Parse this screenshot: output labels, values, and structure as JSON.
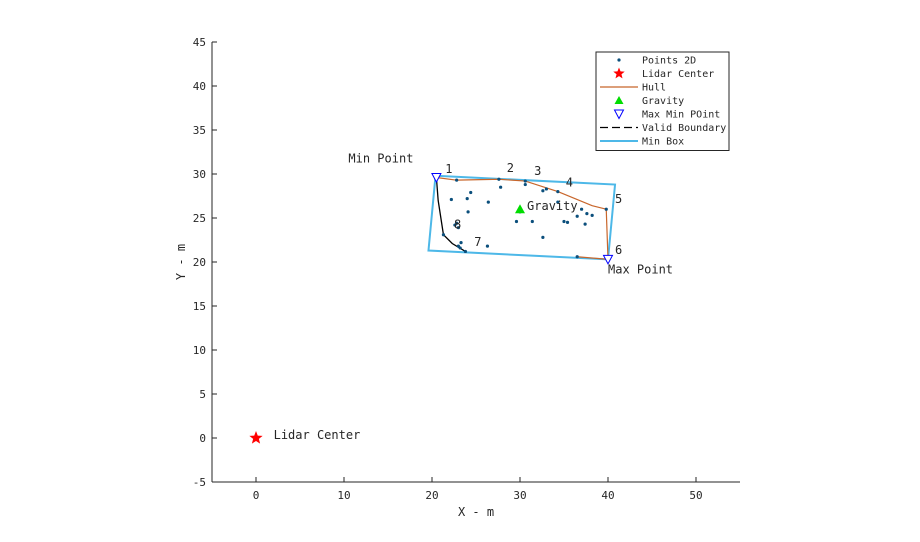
{
  "chart_data": {
    "type": "scatter",
    "xlabel": "X - m",
    "ylabel": "Y - m",
    "xlim": [
      -5,
      55
    ],
    "ylim": [
      -5,
      45
    ],
    "xticks": [
      0,
      10,
      20,
      30,
      40,
      50
    ],
    "yticks": [
      -5,
      0,
      5,
      10,
      15,
      20,
      25,
      30,
      35,
      40,
      45
    ],
    "xtick_labels": [
      "0",
      "10",
      "20",
      "30",
      "40",
      "50"
    ],
    "ytick_labels": [
      "-5",
      "0",
      "5",
      "10",
      "15",
      "20",
      "25",
      "30",
      "35",
      "40",
      "45"
    ],
    "grid": false,
    "legend_position": "top-right",
    "colors": {
      "points": "#0b4f7c",
      "lidar": "#ff0000",
      "hull": "#c8662b",
      "gravity": "#00dd00",
      "maxmin": "#0000ff",
      "valid_boundary": "#000000",
      "min_box": "#4db8e8",
      "axis": "#262626"
    },
    "series": [
      {
        "name": "Points 2D",
        "points": [
          [
            20.5,
            29.6
          ],
          [
            22.8,
            29.3
          ],
          [
            27.6,
            29.4
          ],
          [
            30.6,
            29.2
          ],
          [
            22.2,
            27.1
          ],
          [
            24.0,
            27.2
          ],
          [
            24.4,
            27.9
          ],
          [
            26.4,
            26.8
          ],
          [
            27.8,
            28.5
          ],
          [
            30.6,
            28.8
          ],
          [
            32.6,
            28.1
          ],
          [
            33.0,
            28.3
          ],
          [
            34.3,
            28.0
          ],
          [
            34.3,
            26.8
          ],
          [
            36.5,
            25.2
          ],
          [
            37.0,
            26.0
          ],
          [
            37.6,
            25.5
          ],
          [
            38.2,
            25.3
          ],
          [
            30.0,
            25.7
          ],
          [
            29.6,
            24.6
          ],
          [
            31.4,
            24.6
          ],
          [
            35.0,
            24.6
          ],
          [
            35.4,
            24.5
          ],
          [
            37.4,
            24.3
          ],
          [
            24.1,
            25.7
          ],
          [
            22.6,
            24.2
          ],
          [
            22.8,
            24.4
          ],
          [
            23.0,
            23.9
          ],
          [
            23.3,
            22.2
          ],
          [
            23.2,
            21.6
          ],
          [
            23.0,
            21.8
          ],
          [
            23.8,
            21.2
          ],
          [
            26.3,
            21.8
          ],
          [
            32.6,
            22.8
          ],
          [
            36.5,
            20.6
          ],
          [
            40.0,
            20.3
          ],
          [
            21.3,
            23.1
          ],
          [
            39.8,
            26.0
          ]
        ]
      },
      {
        "name": "Lidar Center",
        "points": [
          [
            0,
            0
          ]
        ]
      },
      {
        "name": "Hull",
        "points": [
          [
            20.5,
            29.6
          ],
          [
            22.8,
            29.3
          ],
          [
            27.6,
            29.4
          ],
          [
            30.6,
            29.2
          ],
          [
            34.3,
            28.0
          ],
          [
            38.2,
            26.4
          ],
          [
            39.8,
            26.0
          ],
          [
            40.0,
            20.3
          ],
          [
            36.5,
            20.6
          ]
        ]
      },
      {
        "name": "Gravity",
        "points": [
          [
            30.0,
            26.0
          ]
        ]
      },
      {
        "name": "Max Min POint",
        "points": [
          [
            20.5,
            29.6
          ],
          [
            40.0,
            20.3
          ]
        ]
      },
      {
        "name": "Valid Boundary",
        "points": [
          [
            20.5,
            29.6
          ],
          [
            20.7,
            27.0
          ],
          [
            21.3,
            23.1
          ],
          [
            22.3,
            22.1
          ],
          [
            23.8,
            21.2
          ]
        ]
      },
      {
        "name": "Min Box",
        "points": [
          [
            20.4,
            29.8
          ],
          [
            40.8,
            28.8
          ],
          [
            40.0,
            20.3
          ],
          [
            19.6,
            21.3
          ]
        ]
      }
    ],
    "annotations": [
      {
        "text": "Min Point",
        "x": 10.5,
        "y": 31.3
      },
      {
        "text": "Max Point",
        "x": 40.0,
        "y": 18.7
      },
      {
        "text": "Lidar Center",
        "x": 2.0,
        "y": -0.1
      },
      {
        "text": "Gravity",
        "x": 30.8,
        "y": 25.9
      },
      {
        "text": "1",
        "x": 21.5,
        "y": 30.1
      },
      {
        "text": "2",
        "x": 28.5,
        "y": 30.2
      },
      {
        "text": "3",
        "x": 31.6,
        "y": 29.9
      },
      {
        "text": "4",
        "x": 35.2,
        "y": 28.6
      },
      {
        "text": "5",
        "x": 40.8,
        "y": 26.7
      },
      {
        "text": "6",
        "x": 40.8,
        "y": 20.9
      },
      {
        "text": "7",
        "x": 24.8,
        "y": 21.8
      },
      {
        "text": "8",
        "x": 22.5,
        "y": 23.8
      }
    ]
  }
}
